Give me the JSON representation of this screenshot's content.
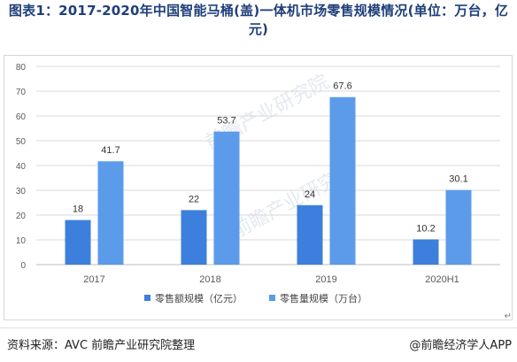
{
  "title": "图表1：2017-2020年中国智能马桶(盖)一体机市场零售规模情况(单位：万台，亿元)",
  "chart_data": {
    "type": "bar",
    "categories": [
      "2017",
      "2018",
      "2019",
      "2020H1"
    ],
    "series": [
      {
        "name": "零售额规模（亿元）",
        "values": [
          18,
          22,
          24,
          10.2
        ],
        "color": "#3d7fdc"
      },
      {
        "name": "零售量规模（万台）",
        "values": [
          41.7,
          53.7,
          67.6,
          30.1
        ],
        "color": "#5b9bea"
      }
    ],
    "value_labels": [
      [
        "18",
        "22",
        "24",
        "10.2"
      ],
      [
        "41.7",
        "53.7",
        "67.6",
        "30.1"
      ]
    ],
    "ylim": [
      0,
      80
    ],
    "yticks": [
      0,
      10,
      20,
      30,
      40,
      50,
      60,
      70,
      80
    ],
    "grid": true,
    "legend_position": "bottom"
  },
  "watermark": "前瞻产业研究院",
  "footer": {
    "source": "资料来源：AVC 前瞻产业研究院整理",
    "brand": "@前瞻经济学人APP"
  },
  "return_mark": "↵"
}
